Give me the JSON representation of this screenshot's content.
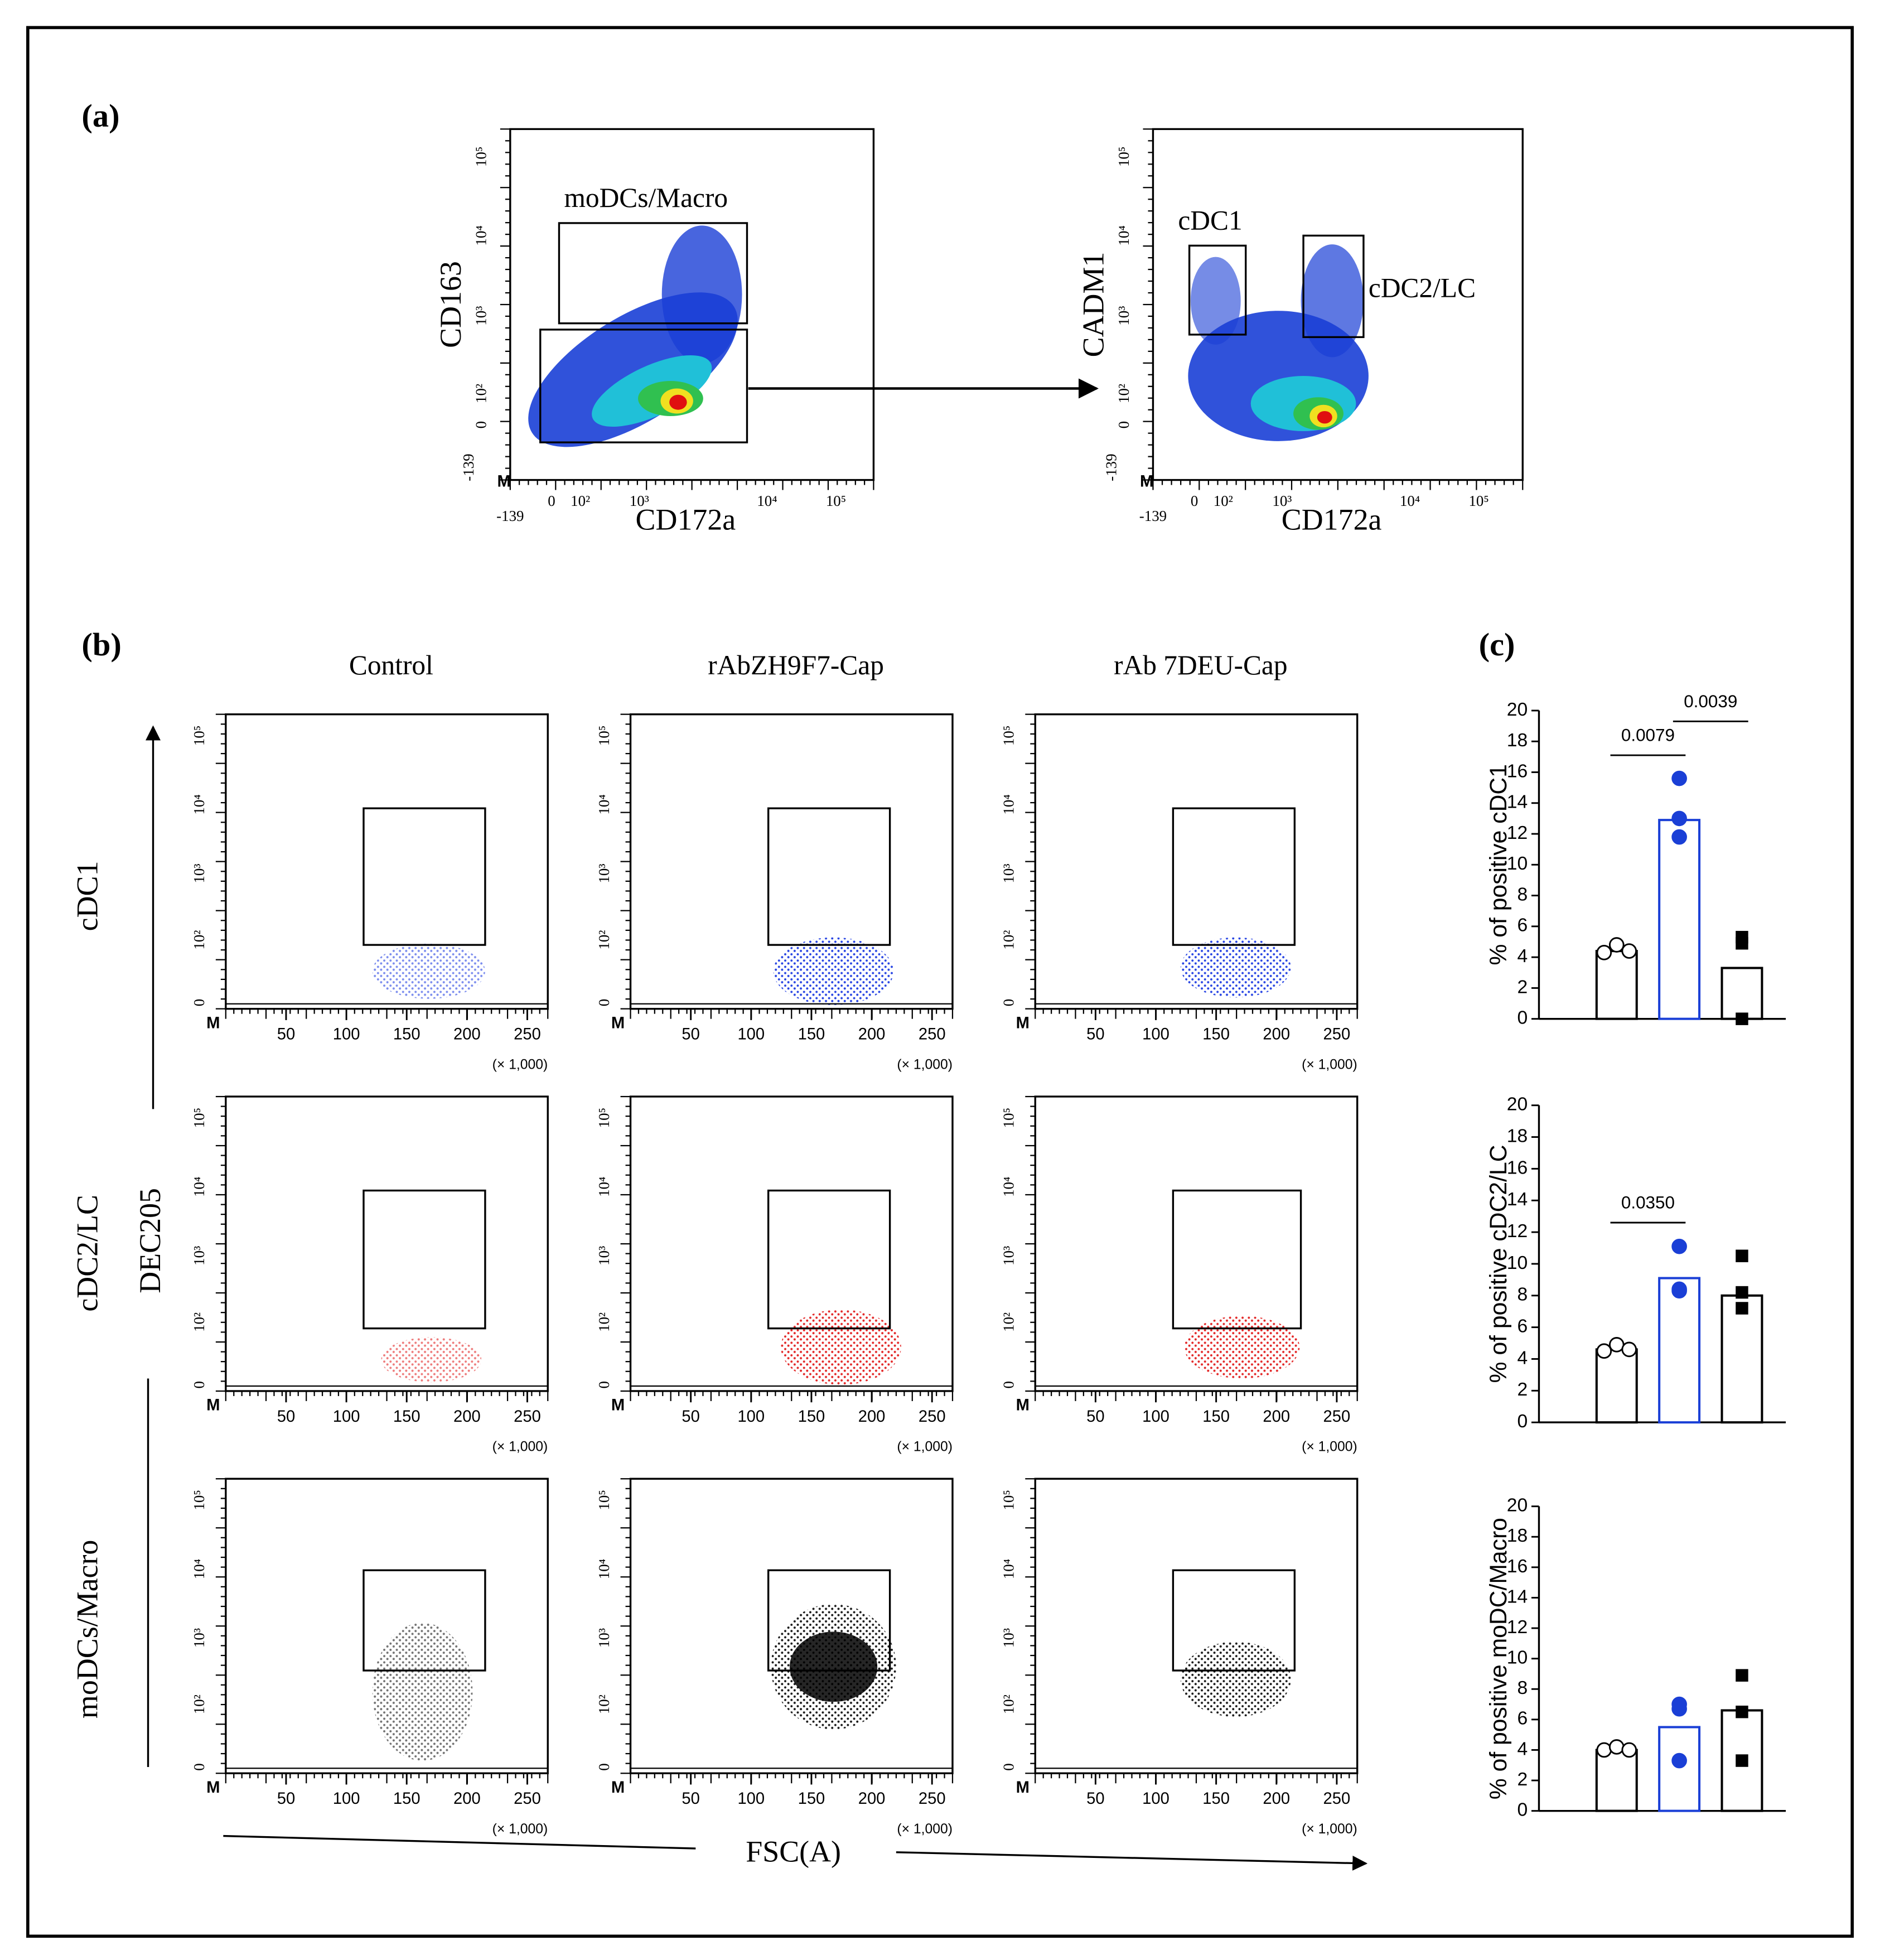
{
  "panel_labels": {
    "a": "(a)",
    "b": "(b)",
    "c": "(c)"
  },
  "panel_a": [
    {
      "y_label": "CD163",
      "x_label": "CD172a",
      "gates": [
        "moDCs/Macro"
      ],
      "marker": "M",
      "xticks": [
        "-139",
        "0",
        "10²",
        "10³",
        "10⁴",
        "10⁵"
      ],
      "yticks": [
        "-139",
        "0",
        "10²",
        "10³",
        "10⁴",
        "10⁵"
      ]
    },
    {
      "y_label": "CADM1",
      "x_label": "CD172a",
      "gates": [
        "cDC1",
        "cDC2/LC"
      ],
      "marker": "M",
      "xticks": [
        "-139",
        "0",
        "10²",
        "10³",
        "10⁴",
        "10⁵"
      ],
      "yticks": [
        "-139",
        "0",
        "10²",
        "10³",
        "10⁴",
        "10⁵"
      ]
    }
  ],
  "panel_b": {
    "columns": [
      "Control",
      "rAbZH9F7-Cap",
      "rAb 7DEU-Cap"
    ],
    "rows": [
      "cDC1",
      "cDC2/LC",
      "moDCs/Macro"
    ],
    "y_label": "DEC205",
    "x_label": "FSC(A)",
    "yticks": [
      "0",
      "10²",
      "10³",
      "10⁴",
      "10⁵"
    ],
    "xlim": [
      0,
      267
    ],
    "xticks": [
      50,
      100,
      150,
      200,
      250
    ],
    "x_scale_note": "(× 1,000)",
    "marker": "M",
    "row_colors": [
      "#1030e0",
      "#e01010",
      "#000000"
    ]
  },
  "chart_data": [
    {
      "type": "bar",
      "y_label": "% of positive cDC1",
      "categories": [
        null,
        null,
        null
      ],
      "values": [
        4.4,
        12.9,
        3.3
      ],
      "bar_colors": [
        "#000000",
        "#1a3fd6",
        "#000000"
      ],
      "points": [
        [
          4.3,
          4.8,
          4.4
        ],
        [
          15.6,
          13.0,
          11.8
        ],
        [
          5.3,
          4.9,
          0
        ]
      ],
      "point_colors": [
        "#000000",
        "#1a3fd6",
        "#000000"
      ],
      "point_shapes": [
        "open-circle",
        "circle",
        "square"
      ],
      "ylim": [
        0,
        20
      ],
      "yticks": [
        0,
        2,
        4,
        6,
        8,
        10,
        12,
        14,
        16,
        18,
        20
      ],
      "annotations": [
        {
          "label": "0.0079",
          "groups": [
            0,
            1
          ]
        },
        {
          "label": "0.0039",
          "groups": [
            1,
            2
          ]
        }
      ]
    },
    {
      "type": "bar",
      "y_label": "% of positive cDC2/LC",
      "categories": [
        null,
        null,
        null
      ],
      "values": [
        4.6,
        9.1,
        8.0
      ],
      "bar_colors": [
        "#000000",
        "#1a3fd6",
        "#000000"
      ],
      "points": [
        [
          4.5,
          4.9,
          4.6
        ],
        [
          11.1,
          8.3,
          8.4
        ],
        [
          10.5,
          8.2,
          7.2
        ]
      ],
      "point_colors": [
        "#000000",
        "#1a3fd6",
        "#000000"
      ],
      "point_shapes": [
        "open-circle",
        "circle",
        "square"
      ],
      "ylim": [
        0,
        20
      ],
      "yticks": [
        0,
        2,
        4,
        6,
        8,
        10,
        12,
        14,
        16,
        18,
        20
      ],
      "annotations": [
        {
          "label": "0.0350",
          "groups": [
            0,
            1
          ]
        }
      ]
    },
    {
      "type": "bar",
      "y_label": "% of positive moDC/Macro",
      "categories": [
        null,
        null,
        null
      ],
      "values": [
        4.0,
        5.5,
        6.6
      ],
      "bar_colors": [
        "#000000",
        "#1a3fd6",
        "#000000"
      ],
      "points": [
        [
          4.0,
          4.2,
          4.0
        ],
        [
          7.0,
          6.7,
          3.3
        ],
        [
          8.9,
          6.5,
          3.3
        ]
      ],
      "point_colors": [
        "#000000",
        "#1a3fd6",
        "#000000"
      ],
      "point_shapes": [
        "open-circle",
        "circle",
        "square"
      ],
      "ylim": [
        0,
        20
      ],
      "yticks": [
        0,
        2,
        4,
        6,
        8,
        10,
        12,
        14,
        16,
        18,
        20
      ],
      "annotations": []
    }
  ]
}
